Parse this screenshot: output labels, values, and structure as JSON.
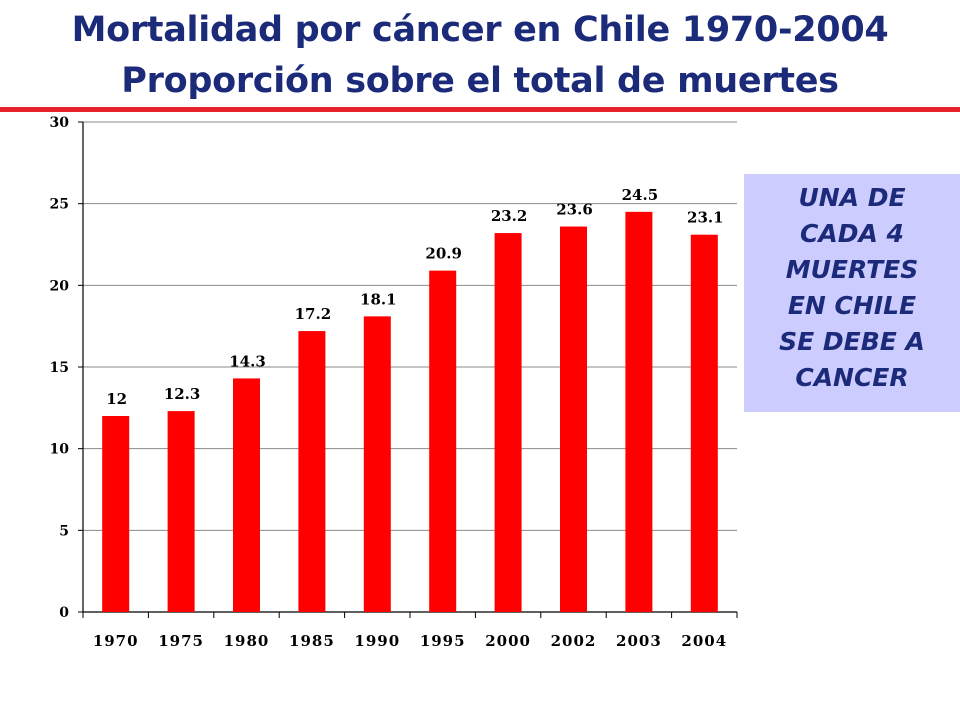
{
  "header": {
    "title_line1": "Mortalidad por cáncer en Chile 1970-2004",
    "title_line2": "Proporción sobre el total de muertes",
    "accent_color": "#e8222a",
    "title_color": "#1c2a7a"
  },
  "callout": {
    "text": "UNA DE\nCADA 4\nMUERTES\nEN CHILE\nSE DEBE A\nCANCER",
    "background": "#ccccff"
  },
  "chart_data": {
    "type": "bar",
    "categories": [
      "1970",
      "1975",
      "1980",
      "1985",
      "1990",
      "1995",
      "2000",
      "2002",
      "2003",
      "2004"
    ],
    "values": [
      12,
      12.3,
      14.3,
      17.2,
      18.1,
      20.9,
      23.2,
      23.6,
      24.5,
      23.1
    ],
    "data_labels": [
      "12",
      "12.3",
      "14.3",
      "17.2",
      "18.1",
      "20.9",
      "23.2",
      "23.6",
      "24.5",
      "23.1"
    ],
    "y_ticks": [
      0,
      5,
      10,
      15,
      20,
      25,
      30
    ],
    "ylim": [
      0,
      30
    ],
    "grid": true,
    "bar_color": "#ff0000",
    "title": "",
    "xlabel": "",
    "ylabel": ""
  }
}
